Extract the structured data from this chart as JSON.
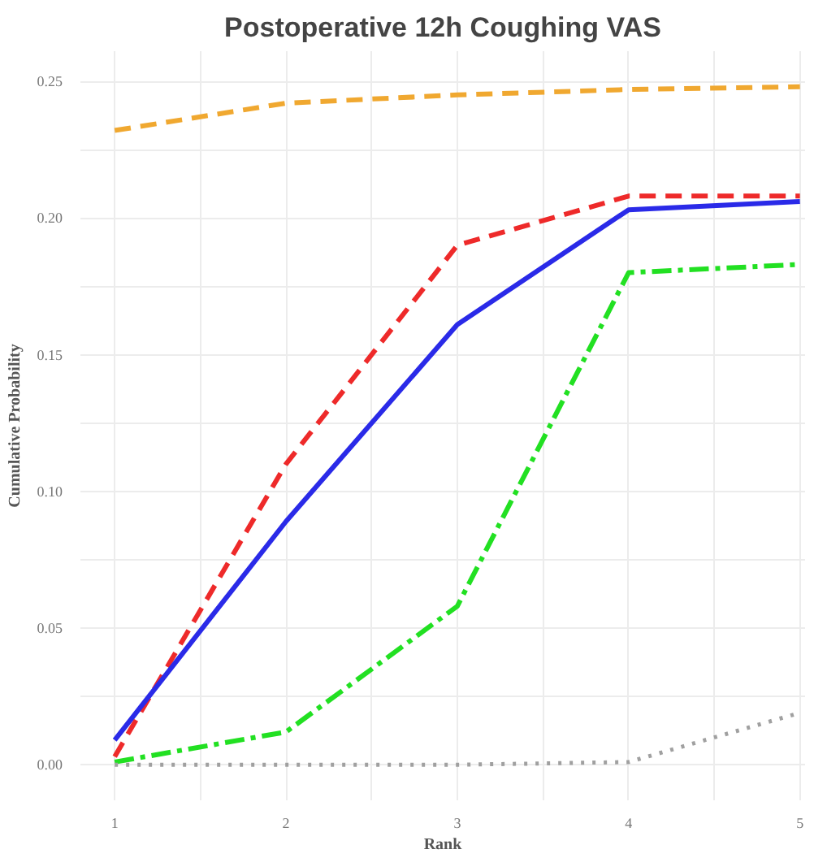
{
  "chart_data": {
    "type": "line",
    "title": "Postoperative 12h Coughing VAS",
    "xlabel": "Rank",
    "ylabel": "Cumulative Probability",
    "x": [
      1,
      2,
      3,
      4,
      5
    ],
    "series": [
      {
        "color": "#f0a830",
        "line_style": "dashed",
        "values": [
          0.232,
          0.242,
          0.245,
          0.247,
          0.248
        ]
      },
      {
        "color": "#ee2a2a",
        "line_style": "dashed",
        "values": [
          0.003,
          0.11,
          0.19,
          0.208,
          0.208
        ]
      },
      {
        "color": "#2a2ae8",
        "line_style": "solid",
        "values": [
          0.009,
          0.089,
          0.161,
          0.203,
          0.206
        ]
      },
      {
        "color": "#22e022",
        "line_style": "dashdot",
        "values": [
          0.001,
          0.012,
          0.058,
          0.18,
          0.183
        ]
      },
      {
        "color": "#a0a0a0",
        "line_style": "dotted",
        "values": [
          0,
          0,
          0,
          0.001,
          0.019
        ]
      }
    ],
    "xlim": [
      0.8,
      5.03
    ],
    "ylim": [
      -0.013,
      0.261
    ],
    "xticks": [
      1,
      {
        "value": 1.5,
        "label": null
      },
      2,
      {
        "value": 2.5,
        "label": null
      },
      3,
      {
        "value": 3.5,
        "label": null
      },
      4,
      {
        "value": 4.5,
        "label": null
      },
      5
    ],
    "yticks": [
      {
        "value": 0,
        "label": "0.00"
      },
      {
        "value": 0.025,
        "label": null
      },
      {
        "value": 0.05,
        "label": "0.05"
      },
      {
        "value": 0.075,
        "label": null
      },
      {
        "value": 0.1,
        "label": "0.10"
      },
      {
        "value": 0.125,
        "label": null
      },
      {
        "value": 0.15,
        "label": "0.15"
      },
      {
        "value": 0.175,
        "label": null
      },
      {
        "value": 0.2,
        "label": "0.20"
      },
      {
        "value": 0.225,
        "label": null
      },
      {
        "value": 0.25,
        "label": "0.25"
      }
    ],
    "grid": true,
    "marker": "none"
  }
}
